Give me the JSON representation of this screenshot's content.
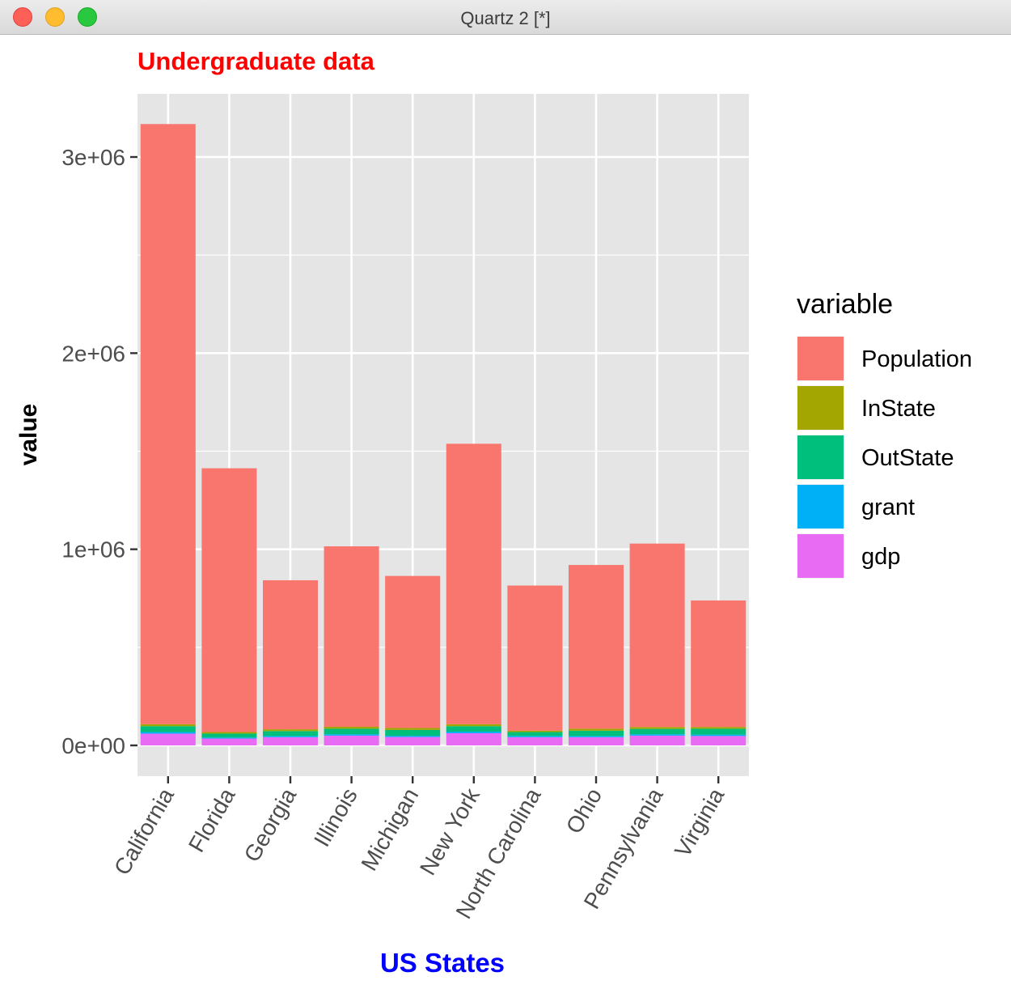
{
  "window": {
    "title": "Quartz 2 [*]"
  },
  "chart_data": {
    "type": "bar",
    "stacked": true,
    "title": "Undergraduate data",
    "xlabel": "US States",
    "ylabel": "value",
    "ylim": [
      -150000,
      3300000
    ],
    "yticks": [
      0,
      1000000,
      2000000,
      3000000
    ],
    "ytick_labels": [
      "0e+00",
      "1e+06",
      "2e+06",
      "3e+06"
    ],
    "grid": true,
    "legend": {
      "title": "variable",
      "position": "right"
    },
    "categories": [
      "California",
      "Florida",
      "Georgia",
      "Illinois",
      "Michigan",
      "New York",
      "North Carolina",
      "Ohio",
      "Pennsylvania",
      "Virginia"
    ],
    "series": [
      {
        "name": "Population",
        "color": "#F8766D",
        "values": [
          3060000,
          1345000,
          760000,
          920000,
          775000,
          1430000,
          740000,
          835000,
          935000,
          645000
        ]
      },
      {
        "name": "InState",
        "color": "#A3A500",
        "values": [
          10000,
          8000,
          9000,
          10000,
          10000,
          10000,
          7000,
          10000,
          10000,
          9000
        ]
      },
      {
        "name": "OutState",
        "color": "#00BF7D",
        "values": [
          30000,
          20000,
          25000,
          28000,
          30000,
          28000,
          20000,
          27000,
          27000,
          30000
        ]
      },
      {
        "name": "grant",
        "color": "#00B0F6",
        "values": [
          8000,
          5000,
          6000,
          7000,
          6000,
          8000,
          6000,
          6000,
          7000,
          7000
        ]
      },
      {
        "name": "gdp",
        "color": "#E76BF3",
        "values": [
          60000,
          35000,
          42000,
          50000,
          43000,
          62000,
          42000,
          42000,
          50000,
          48000
        ]
      }
    ],
    "colors": {
      "title": "#FF0000",
      "xlabel": "#0000FF",
      "panel": "#E5E5E5",
      "grid": "#FFFFFF"
    }
  }
}
